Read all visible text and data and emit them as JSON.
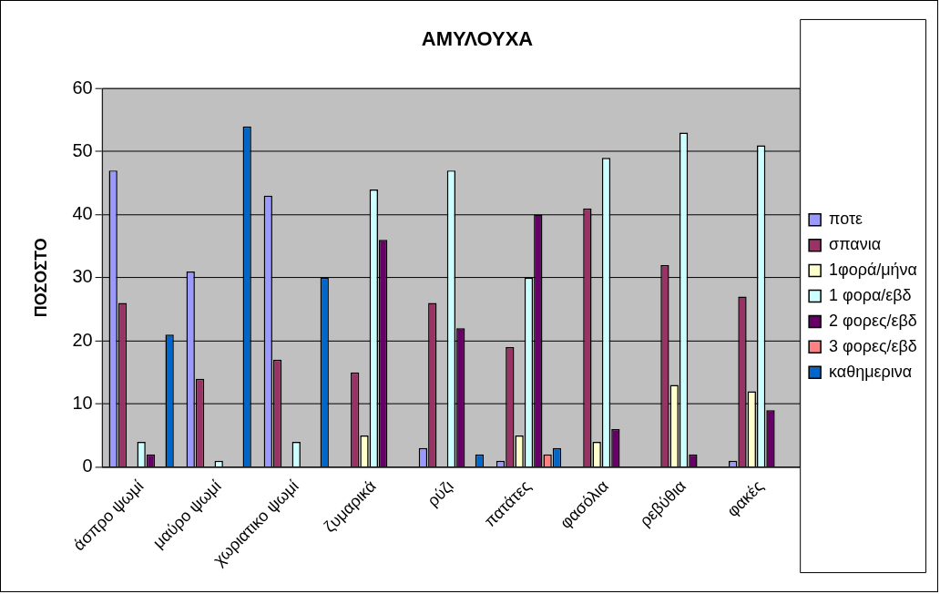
{
  "chart_data": {
    "type": "bar",
    "title": "ΑΜΥΛΟΥΧΑ",
    "ylabel": "ΠΟΣΟΣΤΟ",
    "categories": [
      "άσπρο ψωμί",
      "μαύρο ψωμί",
      "χωριατικο ψωμί",
      "ζυμαρικά",
      "ρύζι",
      "πατάτες",
      "φασόλια",
      "ρεβύθια",
      "φακές"
    ],
    "series": [
      {
        "name": "ποτε",
        "color": "#9999ff",
        "values": [
          47,
          31,
          43,
          null,
          3,
          1,
          null,
          null,
          1
        ]
      },
      {
        "name": "σπανια",
        "color": "#993366",
        "values": [
          26,
          14,
          17,
          15,
          26,
          19,
          41,
          32,
          27
        ]
      },
      {
        "name": "1φορά/μήνα",
        "color": "#ffffcc",
        "values": [
          null,
          null,
          null,
          5,
          null,
          5,
          4,
          13,
          12
        ]
      },
      {
        "name": "1 φορα/εβδ",
        "color": "#ccffff",
        "values": [
          4,
          1,
          4,
          44,
          47,
          30,
          49,
          53,
          51
        ]
      },
      {
        "name": "2 φορες/εβδ",
        "color": "#660066",
        "values": [
          2,
          null,
          null,
          36,
          22,
          40,
          6,
          2,
          9
        ]
      },
      {
        "name": "3 φορες/εβδ",
        "color": "#ff8080",
        "values": [
          null,
          null,
          null,
          null,
          null,
          2,
          null,
          null,
          null
        ]
      },
      {
        "name": "καθημερινα",
        "color": "#0066cc",
        "values": [
          21,
          54,
          30,
          null,
          2,
          3,
          null,
          null,
          null
        ]
      }
    ],
    "ylim": [
      0,
      60
    ],
    "yticks": [
      0,
      10,
      20,
      30,
      40,
      50,
      60
    ],
    "grid": "y",
    "legend": "right"
  }
}
